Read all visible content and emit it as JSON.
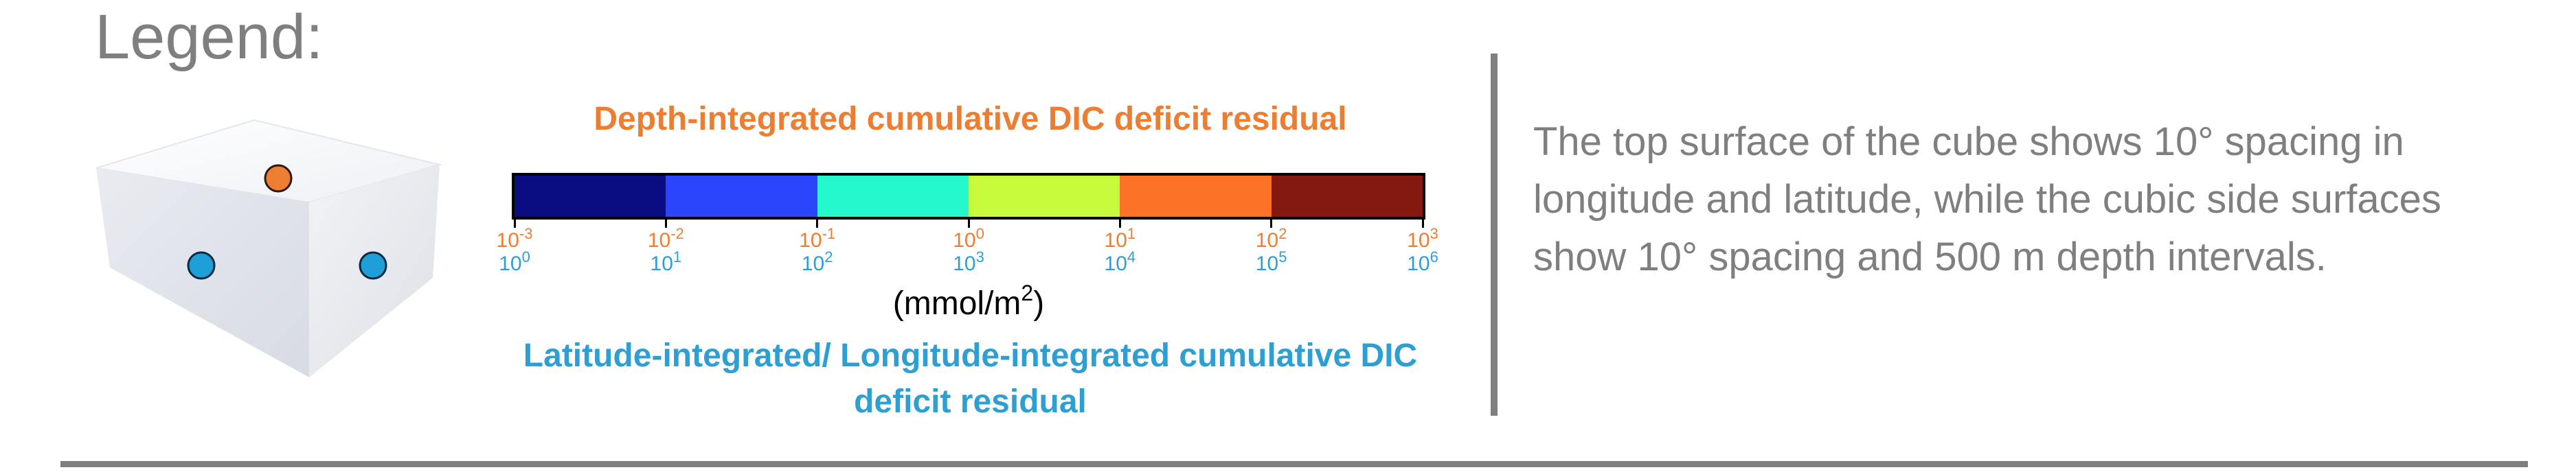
{
  "legend": {
    "title": "Legend:"
  },
  "cube": {
    "top_marker_color": "#ed7d31",
    "side_marker_color": "#1f9fd8"
  },
  "colorbar": {
    "top_title": "Depth-integrated cumulative DIC deficit residual",
    "bottom_title": "Latitude-integrated/ Longitude-integrated cumulative DIC deficit residual",
    "unit_base": "(mmol/m",
    "unit_exp": "2",
    "unit_close": ")",
    "colors": [
      "#0a0c82",
      "#2b45fc",
      "#24f8cc",
      "#c6fa3b",
      "#fc7226",
      "#841912"
    ],
    "top_ticks": [
      {
        "base": "10",
        "exp": "-3"
      },
      {
        "base": "10",
        "exp": "-2"
      },
      {
        "base": "10",
        "exp": "-1"
      },
      {
        "base": "10",
        "exp": "0"
      },
      {
        "base": "10",
        "exp": "1"
      },
      {
        "base": "10",
        "exp": "2"
      },
      {
        "base": "10",
        "exp": "3"
      }
    ],
    "bottom_ticks": [
      {
        "base": "10",
        "exp": "0"
      },
      {
        "base": "10",
        "exp": "1"
      },
      {
        "base": "10",
        "exp": "2"
      },
      {
        "base": "10",
        "exp": "3"
      },
      {
        "base": "10",
        "exp": "4"
      },
      {
        "base": "10",
        "exp": "5"
      },
      {
        "base": "10",
        "exp": "6"
      }
    ]
  },
  "description": "The top surface of the cube shows 10° spacing in longitude and latitude, while the cubic side surfaces show 10° spacing and 500 m depth intervals."
}
